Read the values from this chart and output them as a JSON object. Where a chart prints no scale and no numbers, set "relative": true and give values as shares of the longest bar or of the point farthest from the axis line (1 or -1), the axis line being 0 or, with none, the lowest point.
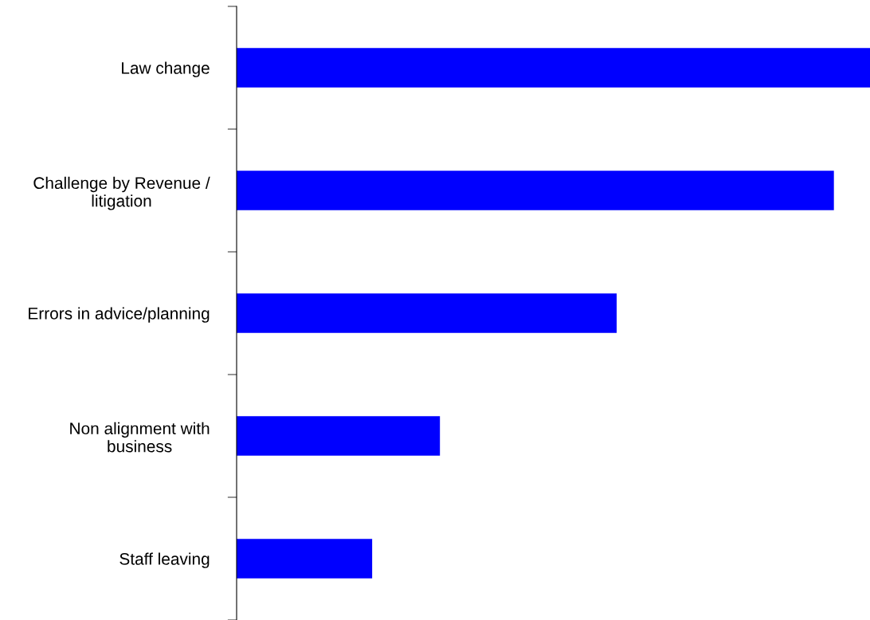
{
  "chart_data": {
    "type": "bar",
    "orientation": "horizontal",
    "relative": true,
    "categories": [
      "Law change",
      "Challenge by Revenue / litigation",
      "Errors in advice/planning",
      "Non alignment with business",
      "Staff leaving"
    ],
    "values": [
      1,
      0.943,
      0.6,
      0.321,
      0.214
    ],
    "color": "#0000ff",
    "grid": false,
    "legend": false
  }
}
